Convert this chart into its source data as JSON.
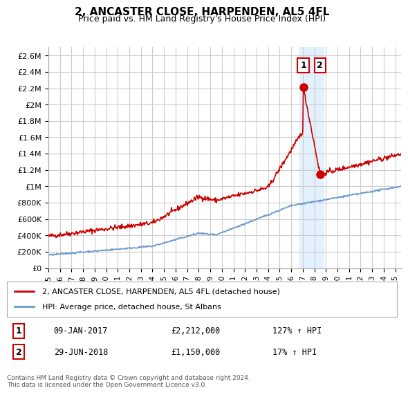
{
  "title": "2, ANCASTER CLOSE, HARPENDEN, AL5 4FL",
  "subtitle": "Price paid vs. HM Land Registry's House Price Index (HPI)",
  "red_label": "2, ANCASTER CLOSE, HARPENDEN, AL5 4FL (detached house)",
  "blue_label": "HPI: Average price, detached house, St Albans",
  "annotation1_date": "09-JAN-2017",
  "annotation1_price": "£2,212,000",
  "annotation1_hpi": "127% ↑ HPI",
  "annotation2_date": "29-JUN-2018",
  "annotation2_price": "£1,150,000",
  "annotation2_hpi": "17% ↑ HPI",
  "footer": "Contains HM Land Registry data © Crown copyright and database right 2024.\nThis data is licensed under the Open Government Licence v3.0.",
  "ylim": [
    0,
    2700000
  ],
  "yticks": [
    0,
    200000,
    400000,
    600000,
    800000,
    1000000,
    1200000,
    1400000,
    1600000,
    1800000,
    2000000,
    2200000,
    2400000,
    2600000
  ],
  "ytick_labels": [
    "£0",
    "£200K",
    "£400K",
    "£600K",
    "£800K",
    "£1M",
    "£1.2M",
    "£1.4M",
    "£1.6M",
    "£1.8M",
    "£2M",
    "£2.2M",
    "£2.4M",
    "£2.6M"
  ],
  "bg_color": "#ffffff",
  "grid_color": "#cccccc",
  "red_color": "#cc0000",
  "blue_color": "#6699cc",
  "highlight_color": "#ddeeff",
  "annotation_box_color": "#cc0000",
  "sale1_year": 2017.04,
  "sale1_value": 2212000,
  "sale2_year": 2018.49,
  "sale2_value": 1150000,
  "xmin": 1995,
  "xmax": 2025.5
}
